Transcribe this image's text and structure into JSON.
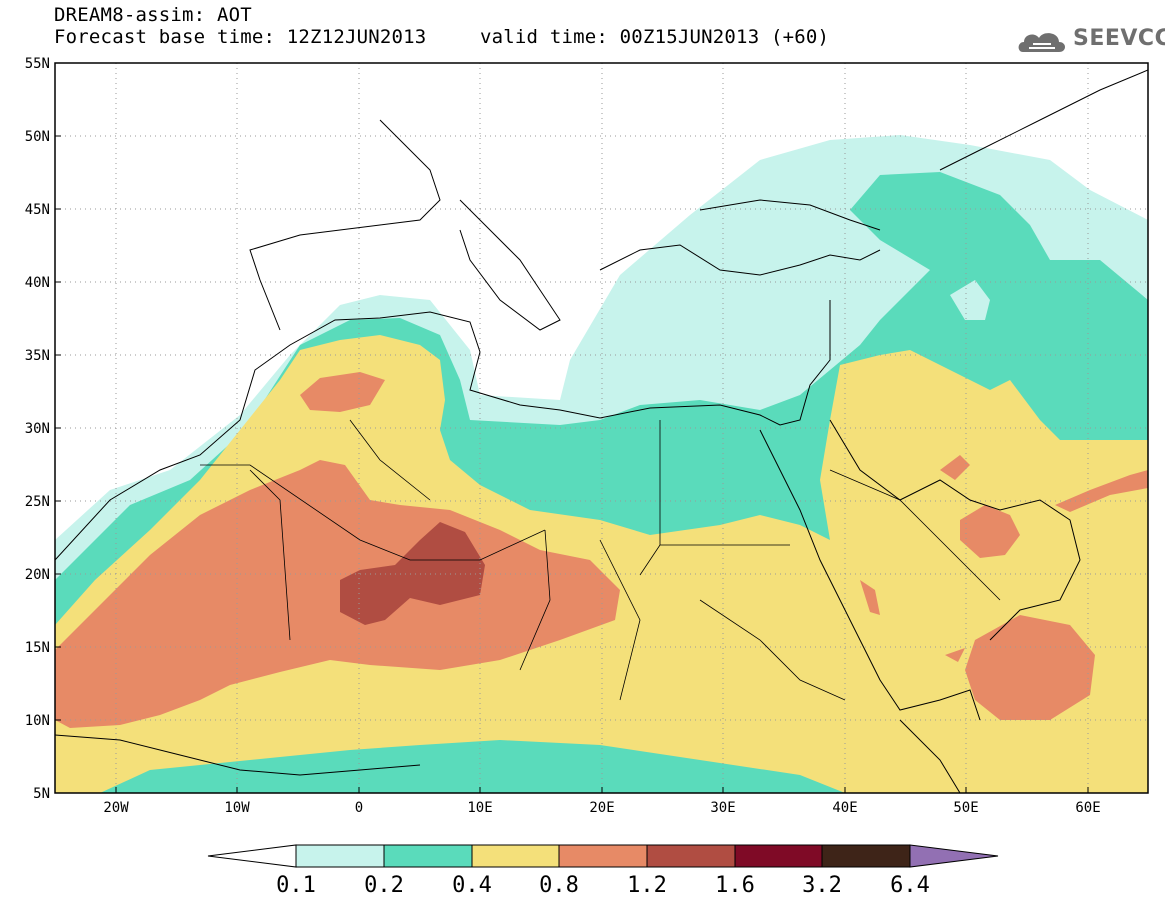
{
  "header": {
    "line1": "DREAM8-assim: AOT",
    "line2": "Forecast base time: 12Z12JUN2013",
    "line3": "valid time: 00Z15JUN2013 (+60)",
    "logo": "SEEVCCC"
  },
  "map": {
    "lat_labels": [
      "55N",
      "50N",
      "45N",
      "40N",
      "35N",
      "30N",
      "25N",
      "20N",
      "15N",
      "10N",
      "5N"
    ],
    "lon_labels": [
      "20W",
      "10W",
      "0",
      "10E",
      "20E",
      "30E",
      "40E",
      "50E",
      "60E"
    ],
    "lat_range": [
      5,
      55
    ],
    "lon_range": [
      -25,
      65
    ],
    "colors": {
      "c1": "#c7f3ec",
      "c2": "#5adbbb",
      "c3": "#f4e07a",
      "c4": "#e78a66",
      "c5": "#b04d42",
      "c6": "#7f0a26",
      "c7": "#3e2418",
      "c8": "#9270b3"
    }
  },
  "colorbar": {
    "labels": [
      "0.1",
      "0.2",
      "0.4",
      "0.8",
      "1.2",
      "1.6",
      "3.2",
      "6.4"
    ]
  }
}
